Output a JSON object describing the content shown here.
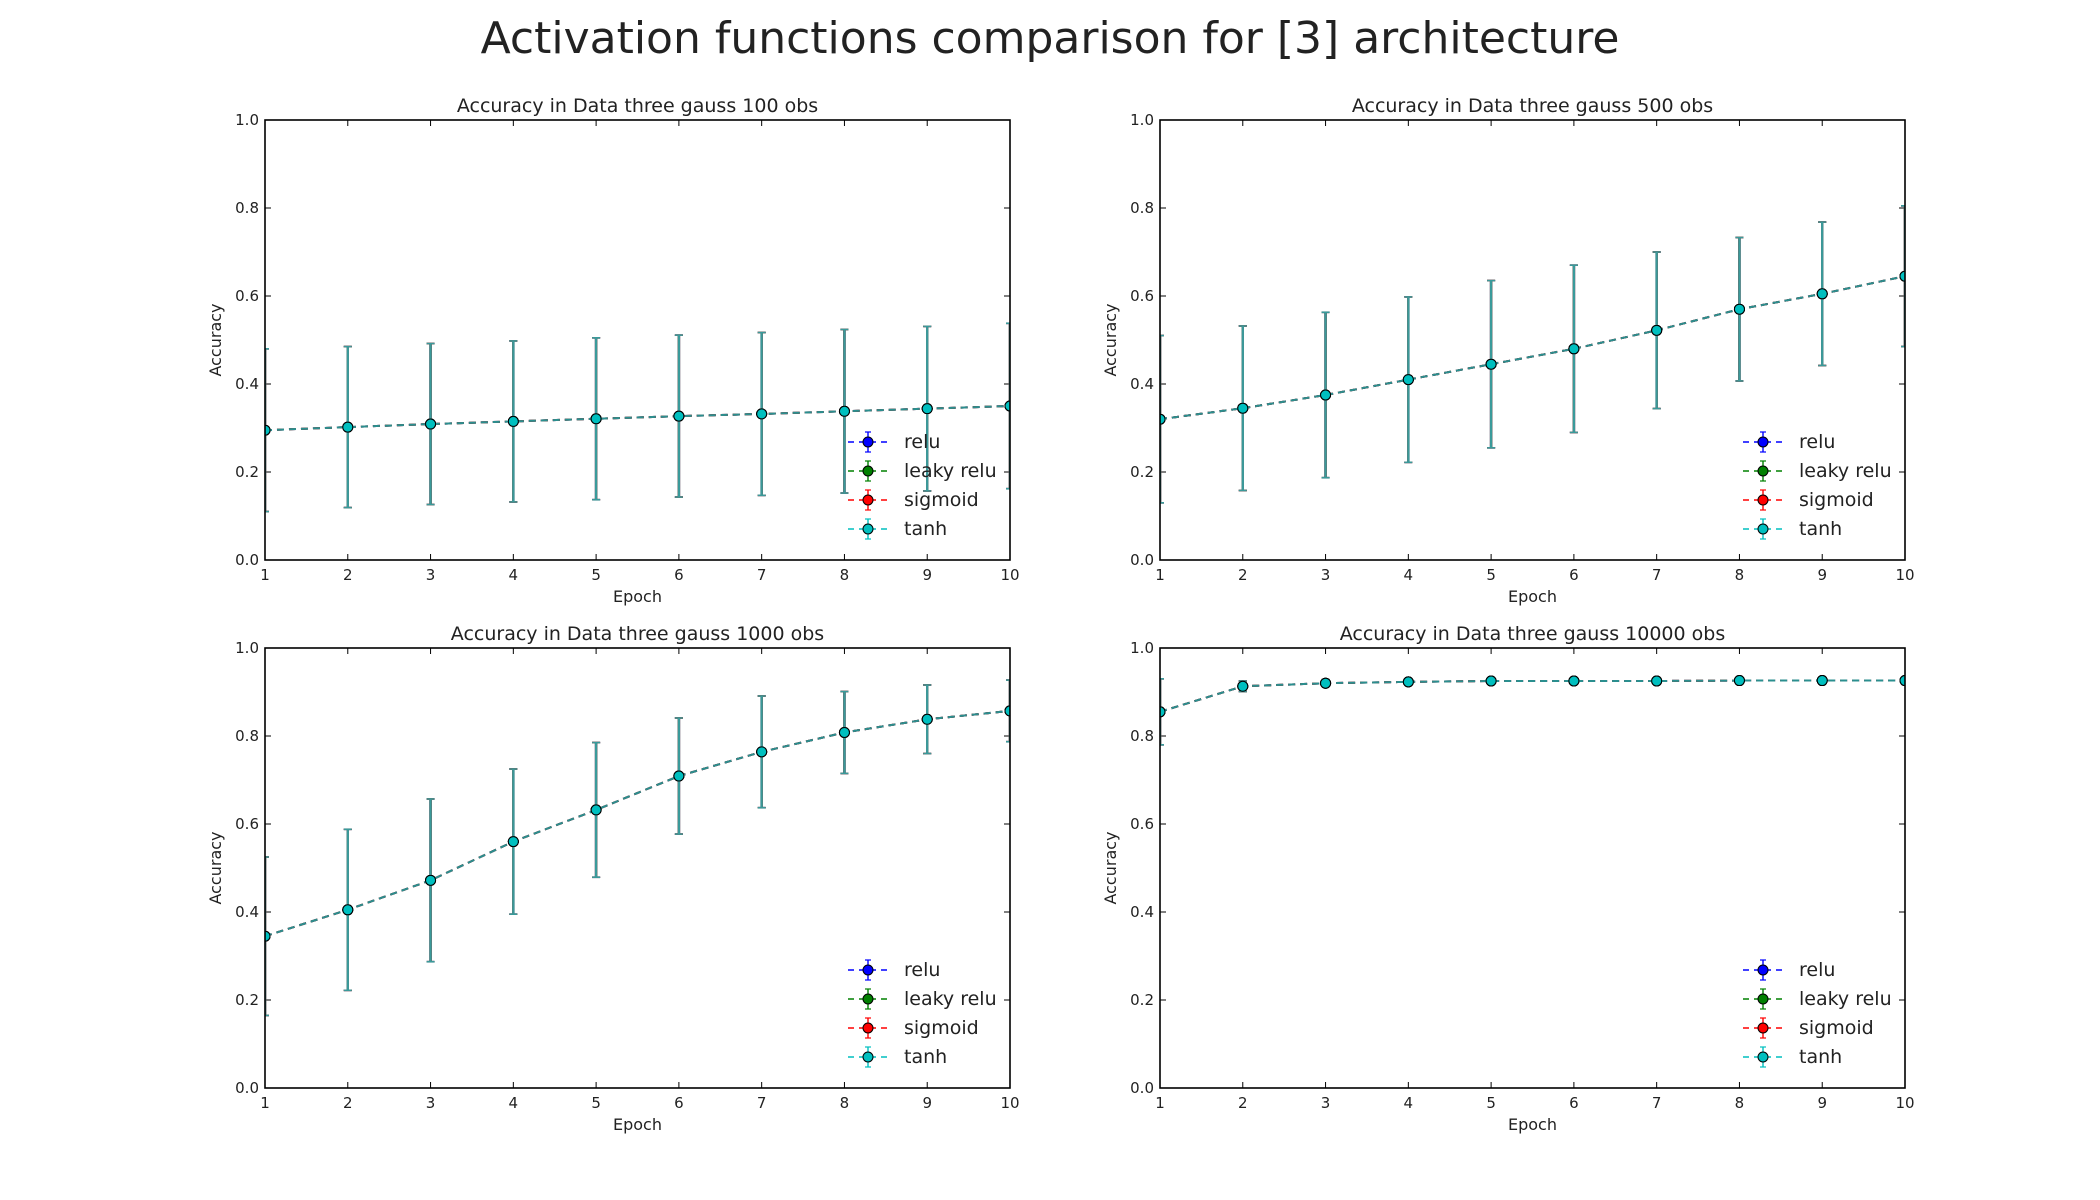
{
  "figure": {
    "title": "Activation functions comparison for [3] architecture"
  },
  "colors": {
    "relu": "#0000ff",
    "leaky relu": "#008000",
    "sigmoid": "#ff0000",
    "tanh": "#00bfbf",
    "error_bar": "#3a9a9a",
    "visible_line": "#2a8f8f"
  },
  "chart_data": [
    {
      "type": "line",
      "title": "Accuracy in Data three gauss 100 obs",
      "xlabel": "Epoch",
      "ylabel": "Accuracy",
      "x": [
        1,
        2,
        3,
        4,
        5,
        6,
        7,
        8,
        9,
        10
      ],
      "xlim": [
        1,
        10
      ],
      "ylim": [
        0.0,
        1.0
      ],
      "xticks": [
        "1",
        "2",
        "3",
        "4",
        "5",
        "6",
        "7",
        "8",
        "9",
        "10"
      ],
      "yticks": [
        "0.0",
        "0.2",
        "0.4",
        "0.6",
        "0.8",
        "1.0"
      ],
      "grid": false,
      "legend": "lower-right",
      "series": [
        {
          "name": "relu",
          "values": [
            0.295,
            0.302,
            0.309,
            0.315,
            0.321,
            0.327,
            0.332,
            0.338,
            0.344,
            0.35
          ],
          "errors": [
            0.185,
            0.183,
            0.183,
            0.183,
            0.184,
            0.184,
            0.185,
            0.186,
            0.187,
            0.188
          ]
        },
        {
          "name": "leaky relu",
          "values": [
            0.295,
            0.302,
            0.309,
            0.315,
            0.321,
            0.327,
            0.332,
            0.338,
            0.344,
            0.35
          ],
          "errors": [
            0.185,
            0.183,
            0.183,
            0.183,
            0.184,
            0.184,
            0.185,
            0.186,
            0.187,
            0.188
          ]
        },
        {
          "name": "sigmoid",
          "values": [
            0.295,
            0.302,
            0.309,
            0.315,
            0.321,
            0.327,
            0.332,
            0.338,
            0.344,
            0.35
          ],
          "errors": [
            0.185,
            0.183,
            0.183,
            0.183,
            0.184,
            0.184,
            0.185,
            0.186,
            0.187,
            0.188
          ]
        },
        {
          "name": "tanh",
          "values": [
            0.295,
            0.302,
            0.309,
            0.315,
            0.321,
            0.327,
            0.332,
            0.338,
            0.344,
            0.35
          ],
          "errors": [
            0.185,
            0.183,
            0.183,
            0.183,
            0.184,
            0.184,
            0.185,
            0.186,
            0.187,
            0.188
          ]
        }
      ]
    },
    {
      "type": "line",
      "title": "Accuracy in Data three gauss 500 obs",
      "xlabel": "Epoch",
      "ylabel": "Accuracy",
      "x": [
        1,
        2,
        3,
        4,
        5,
        6,
        7,
        8,
        9,
        10
      ],
      "xlim": [
        1,
        10
      ],
      "ylim": [
        0.0,
        1.0
      ],
      "xticks": [
        "1",
        "2",
        "3",
        "4",
        "5",
        "6",
        "7",
        "8",
        "9",
        "10"
      ],
      "yticks": [
        "0.0",
        "0.2",
        "0.4",
        "0.6",
        "0.8",
        "1.0"
      ],
      "grid": false,
      "legend": "lower-right",
      "series": [
        {
          "name": "relu",
          "values": [
            0.32,
            0.345,
            0.375,
            0.41,
            0.445,
            0.48,
            0.522,
            0.57,
            0.605,
            0.645
          ],
          "errors": [
            0.19,
            0.187,
            0.188,
            0.188,
            0.19,
            0.19,
            0.178,
            0.163,
            0.163,
            0.16
          ]
        },
        {
          "name": "leaky relu",
          "values": [
            0.32,
            0.345,
            0.375,
            0.41,
            0.445,
            0.48,
            0.522,
            0.57,
            0.605,
            0.645
          ],
          "errors": [
            0.19,
            0.187,
            0.188,
            0.188,
            0.19,
            0.19,
            0.178,
            0.163,
            0.163,
            0.16
          ]
        },
        {
          "name": "sigmoid",
          "values": [
            0.32,
            0.345,
            0.375,
            0.41,
            0.445,
            0.48,
            0.522,
            0.57,
            0.605,
            0.645
          ],
          "errors": [
            0.19,
            0.187,
            0.188,
            0.188,
            0.19,
            0.19,
            0.178,
            0.163,
            0.163,
            0.16
          ]
        },
        {
          "name": "tanh",
          "values": [
            0.32,
            0.345,
            0.375,
            0.41,
            0.445,
            0.48,
            0.522,
            0.57,
            0.605,
            0.645
          ],
          "errors": [
            0.19,
            0.187,
            0.188,
            0.188,
            0.19,
            0.19,
            0.178,
            0.163,
            0.163,
            0.16
          ]
        }
      ]
    },
    {
      "type": "line",
      "title": "Accuracy in Data three gauss 1000 obs",
      "xlabel": "Epoch",
      "ylabel": "Accuracy",
      "x": [
        1,
        2,
        3,
        4,
        5,
        6,
        7,
        8,
        9,
        10
      ],
      "xlim": [
        1,
        10
      ],
      "ylim": [
        0.0,
        1.0
      ],
      "xticks": [
        "1",
        "2",
        "3",
        "4",
        "5",
        "6",
        "7",
        "8",
        "9",
        "10"
      ],
      "yticks": [
        "0.0",
        "0.2",
        "0.4",
        "0.6",
        "0.8",
        "1.0"
      ],
      "grid": false,
      "legend": "lower-right",
      "series": [
        {
          "name": "relu",
          "values": [
            0.345,
            0.405,
            0.472,
            0.56,
            0.632,
            0.709,
            0.764,
            0.808,
            0.838,
            0.857
          ],
          "errors": [
            0.18,
            0.183,
            0.185,
            0.165,
            0.153,
            0.132,
            0.127,
            0.093,
            0.078,
            0.07
          ]
        },
        {
          "name": "leaky relu",
          "values": [
            0.345,
            0.405,
            0.472,
            0.56,
            0.632,
            0.709,
            0.764,
            0.808,
            0.838,
            0.857
          ],
          "errors": [
            0.18,
            0.183,
            0.185,
            0.165,
            0.153,
            0.132,
            0.127,
            0.093,
            0.078,
            0.07
          ]
        },
        {
          "name": "sigmoid",
          "values": [
            0.345,
            0.405,
            0.472,
            0.56,
            0.632,
            0.709,
            0.764,
            0.808,
            0.838,
            0.857
          ],
          "errors": [
            0.18,
            0.183,
            0.185,
            0.165,
            0.153,
            0.132,
            0.127,
            0.093,
            0.078,
            0.07
          ]
        },
        {
          "name": "tanh",
          "values": [
            0.345,
            0.405,
            0.472,
            0.56,
            0.632,
            0.709,
            0.764,
            0.808,
            0.838,
            0.857
          ],
          "errors": [
            0.18,
            0.183,
            0.185,
            0.165,
            0.153,
            0.132,
            0.127,
            0.093,
            0.078,
            0.07
          ]
        }
      ]
    },
    {
      "type": "line",
      "title": "Accuracy in Data three gauss 10000 obs",
      "xlabel": "Epoch",
      "ylabel": "Accuracy",
      "x": [
        1,
        2,
        3,
        4,
        5,
        6,
        7,
        8,
        9,
        10
      ],
      "xlim": [
        1,
        10
      ],
      "ylim": [
        0.0,
        1.0
      ],
      "xticks": [
        "1",
        "2",
        "3",
        "4",
        "5",
        "6",
        "7",
        "8",
        "9",
        "10"
      ],
      "yticks": [
        "0.0",
        "0.2",
        "0.4",
        "0.6",
        "0.8",
        "1.0"
      ],
      "grid": false,
      "legend": "lower-right",
      "series": [
        {
          "name": "relu",
          "values": [
            0.855,
            0.913,
            0.92,
            0.923,
            0.925,
            0.925,
            0.925,
            0.926,
            0.926,
            0.926
          ],
          "errors": [
            0.075,
            0.012,
            0.008,
            0.006,
            0.006,
            0.005,
            0.005,
            0.005,
            0.005,
            0.005
          ]
        },
        {
          "name": "leaky relu",
          "values": [
            0.855,
            0.913,
            0.92,
            0.923,
            0.925,
            0.925,
            0.925,
            0.926,
            0.926,
            0.926
          ],
          "errors": [
            0.075,
            0.012,
            0.008,
            0.006,
            0.006,
            0.005,
            0.005,
            0.005,
            0.005,
            0.005
          ]
        },
        {
          "name": "sigmoid",
          "values": [
            0.855,
            0.913,
            0.92,
            0.923,
            0.925,
            0.925,
            0.925,
            0.926,
            0.926,
            0.926
          ],
          "errors": [
            0.075,
            0.012,
            0.008,
            0.006,
            0.006,
            0.005,
            0.005,
            0.005,
            0.005,
            0.005
          ]
        },
        {
          "name": "tanh",
          "values": [
            0.855,
            0.913,
            0.92,
            0.923,
            0.925,
            0.925,
            0.925,
            0.926,
            0.926,
            0.926
          ],
          "errors": [
            0.075,
            0.012,
            0.008,
            0.006,
            0.006,
            0.005,
            0.005,
            0.005,
            0.005,
            0.005
          ]
        }
      ]
    }
  ]
}
